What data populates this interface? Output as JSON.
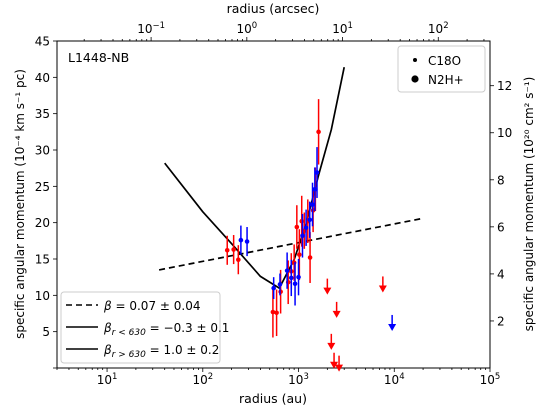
{
  "chart_data": {
    "type": "scatter",
    "title": "",
    "panel_label": "L1448-NB",
    "xlabel": "radius (au)",
    "top_xlabel": "radius (arcsec)",
    "ylabel": "specific angular momentum (10⁻⁴ km s⁻¹ pc)",
    "right_ylabel": "specific angular momentum (10²⁰ cm² s⁻¹)",
    "xscale": "log",
    "xlim": [
      3,
      100000
    ],
    "ylim": [
      0,
      45
    ],
    "top_xlim": [
      0.0104,
      347
    ],
    "right_ylim": [
      0,
      13.9
    ],
    "x_ticks": [
      "10^1",
      "10^2",
      "10^3",
      "10^4",
      "10^5"
    ],
    "y_ticks": [
      "5",
      "10",
      "15",
      "20",
      "25",
      "30",
      "35",
      "40",
      "45"
    ],
    "top_ticks": [
      "10^-1",
      "10^0",
      "10^1",
      "10^2"
    ],
    "right_ticks": [
      "2",
      "4",
      "6",
      "8",
      "10",
      "12"
    ],
    "colors": {
      "red": "#ff0000",
      "blue": "#0000ff",
      "black": "#000000"
    },
    "legend_markers": {
      "position": "top-right",
      "entries": [
        {
          "label": "C18O",
          "marker": "small-dot"
        },
        {
          "label": "N2H+",
          "marker": "large-dot"
        }
      ]
    },
    "legend_lines": {
      "position": "bottom-left",
      "entries": [
        {
          "style": "dashed",
          "math": {
            "base": "β",
            "sub": "",
            "rest": " = 0.07 ± 0.04"
          }
        },
        {
          "style": "solid",
          "math": {
            "base": "β",
            "sub": "r < 630",
            "rest": " = −0.3 ± 0.1"
          }
        },
        {
          "style": "solid",
          "math": {
            "base": "β",
            "sub": "r > 630",
            "rest": " = 1.0 ± 0.2"
          }
        }
      ]
    },
    "lines": [
      {
        "style": "dashed",
        "points": [
          [
            35,
            13.5
          ],
          [
            20000,
            20.6
          ]
        ]
      },
      {
        "style": "solid",
        "points": [
          [
            40,
            28.2
          ],
          [
            100,
            21.5
          ],
          [
            200,
            17.1
          ],
          [
            400,
            12.6
          ],
          [
            630,
            11.0
          ],
          [
            900,
            14.9
          ],
          [
            1200,
            19.8
          ],
          [
            1600,
            26.3
          ],
          [
            2200,
            32.8
          ],
          [
            3000,
            41.4
          ]
        ]
      }
    ],
    "series": [
      {
        "color": "red",
        "points": [
          [
            180,
            16.2,
            2.0
          ],
          [
            210,
            16.3,
            2.0
          ],
          [
            235,
            14.9,
            2.0
          ],
          [
            540,
            7.7,
            3.5
          ],
          [
            590,
            7.6,
            3.2
          ],
          [
            650,
            10.5,
            3.0
          ],
          [
            780,
            11.8,
            3.0
          ],
          [
            840,
            13.3,
            2.5
          ],
          [
            900,
            14.5,
            2.5
          ],
          [
            960,
            19.4,
            3.0
          ],
          [
            1020,
            15.6,
            3.5
          ],
          [
            1080,
            20.2,
            3.5
          ],
          [
            1150,
            18.9,
            2.5
          ],
          [
            1250,
            20.2,
            3.0
          ],
          [
            1320,
            15.2,
            3.5
          ],
          [
            1420,
            21.7,
            3.0
          ],
          [
            1500,
            24.6,
            3.0
          ],
          [
            1620,
            32.5,
            4.5
          ]
        ],
        "upper_limits": [
          [
            2000,
            12.3
          ],
          [
            2200,
            4.7
          ],
          [
            2350,
            2.1
          ],
          [
            2650,
            1.7
          ],
          [
            2500,
            9.1
          ],
          [
            7600,
            12.6
          ]
        ]
      },
      {
        "color": "blue",
        "points": [
          [
            250,
            17.6,
            2.0
          ],
          [
            290,
            17.4,
            2.0
          ],
          [
            550,
            11.0,
            1.5
          ],
          [
            640,
            11.5,
            1.5
          ],
          [
            760,
            13.4,
            2.5
          ],
          [
            840,
            12.4,
            2.5
          ],
          [
            920,
            11.6,
            3.0
          ],
          [
            1000,
            12.5,
            2.5
          ],
          [
            1100,
            18.2,
            3.0
          ],
          [
            1200,
            19.3,
            2.5
          ],
          [
            1310,
            20.4,
            2.5
          ],
          [
            1400,
            22.5,
            3.0
          ],
          [
            1480,
            24.6,
            3.0
          ],
          [
            1560,
            26.9,
            3.5
          ]
        ],
        "upper_limits": [
          [
            9500,
            7.3
          ]
        ]
      }
    ]
  }
}
